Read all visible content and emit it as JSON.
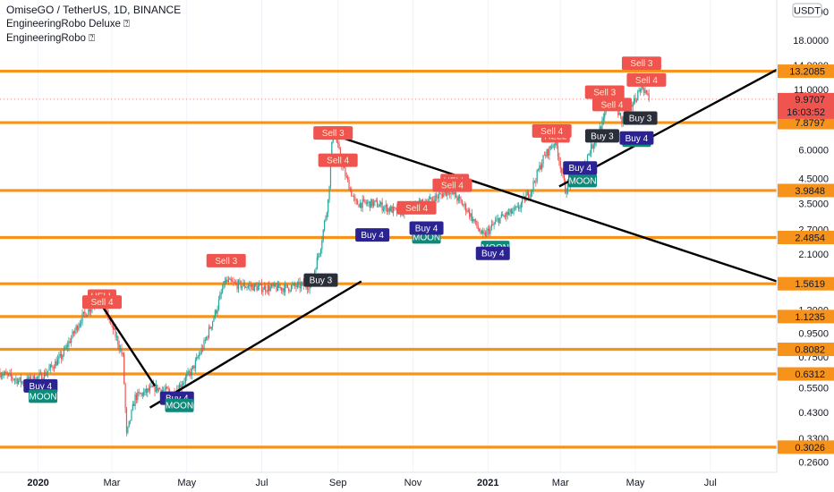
{
  "header": {
    "symbol_line": "OmiseGO / TetherUS, 1D, BINANCE",
    "indicator1": "EngineeringRobo Deluxe ⍰",
    "indicator2": "EngineeringRobo ⍰"
  },
  "price_axis": {
    "currency": "USDT",
    "ticks": [
      "24.0000",
      "18.0000",
      "14.0000",
      "11.0000",
      "8.0000",
      "6.0000",
      "4.5000",
      "3.5000",
      "2.7000",
      "2.1000",
      "1.6000",
      "1.2000",
      "0.9500",
      "0.7500",
      "0.5500",
      "0.4300",
      "0.3300",
      "0.2600"
    ],
    "last_price": "9.9707",
    "countdown": "16:03:52"
  },
  "time_axis": {
    "labels": [
      "2020",
      "Mar",
      "May",
      "Jul",
      "Sep",
      "Nov",
      "2021",
      "Mar",
      "May",
      "Jul"
    ]
  },
  "colors": {
    "level": "#f7931a",
    "sell": "#f0544f",
    "buy": "#2b2391",
    "moon": "#0e8a7a",
    "hell": "#f0544f",
    "trend": "#000000",
    "last_price": "#f0544f",
    "candle_up": "#26a69a",
    "candle_down": "#ef5350"
  },
  "chart_data": {
    "type": "candlestick",
    "title": "OmiseGO / TetherUS, 1D, BINANCE",
    "y_scale": "log",
    "ylim": [
      0.235,
      27
    ],
    "x_range": [
      "2019-12-01",
      "2021-08-24"
    ],
    "horizontal_levels": [
      13.2085,
      7.8797,
      3.9848,
      2.4854,
      1.5619,
      1.1235,
      0.8082,
      0.6312,
      0.3026
    ],
    "close_path": [
      [
        "2019-12-01",
        0.64
      ],
      [
        "2019-12-20",
        0.58
      ],
      [
        "2020-01-05",
        0.62
      ],
      [
        "2020-01-20",
        0.75
      ],
      [
        "2020-02-05",
        1.1
      ],
      [
        "2020-02-18",
        1.33
      ],
      [
        "2020-02-25",
        1.2
      ],
      [
        "2020-03-05",
        0.9
      ],
      [
        "2020-03-10",
        0.75
      ],
      [
        "2020-03-13",
        0.34
      ],
      [
        "2020-03-20",
        0.5
      ],
      [
        "2020-04-05",
        0.55
      ],
      [
        "2020-04-20",
        0.52
      ],
      [
        "2020-05-05",
        0.65
      ],
      [
        "2020-05-15",
        0.85
      ],
      [
        "2020-05-25",
        1.2
      ],
      [
        "2020-06-01",
        1.6
      ],
      [
        "2020-06-10",
        1.55
      ],
      [
        "2020-07-01",
        1.5
      ],
      [
        "2020-07-20",
        1.5
      ],
      [
        "2020-08-10",
        1.55
      ],
      [
        "2020-08-18",
        2.3
      ],
      [
        "2020-08-24",
        3.6
      ],
      [
        "2020-08-28",
        7.5
      ],
      [
        "2020-09-05",
        5.0
      ],
      [
        "2020-09-15",
        3.5
      ],
      [
        "2020-10-01",
        3.5
      ],
      [
        "2020-10-20",
        3.2
      ],
      [
        "2020-11-15",
        3.6
      ],
      [
        "2020-12-01",
        4.0
      ],
      [
        "2020-12-15",
        3.3
      ],
      [
        "2020-12-28",
        2.5
      ],
      [
        "2021-01-10",
        3.0
      ],
      [
        "2021-01-25",
        3.3
      ],
      [
        "2021-02-05",
        4.0
      ],
      [
        "2021-02-15",
        5.5
      ],
      [
        "2021-02-25",
        6.6
      ],
      [
        "2021-03-05",
        4.0
      ],
      [
        "2021-03-20",
        5.2
      ],
      [
        "2021-04-05",
        8.0
      ],
      [
        "2021-04-10",
        10.5
      ],
      [
        "2021-04-20",
        8.0
      ],
      [
        "2021-05-01",
        10.0
      ],
      [
        "2021-05-06",
        11.6
      ],
      [
        "2021-05-12",
        9.97
      ]
    ],
    "trendlines": [
      [
        [
          "2020-02-20",
          1.3
        ],
        [
          "2020-04-05",
          0.56
        ]
      ],
      [
        [
          "2020-04-01",
          0.45
        ],
        [
          "2020-09-20",
          1.6
        ]
      ],
      [
        [
          "2020-08-27",
          7.0
        ],
        [
          "2021-08-24",
          1.6
        ]
      ],
      [
        [
          "2021-02-28",
          4.15
        ],
        [
          "2021-08-24",
          13.4
        ]
      ]
    ],
    "signals": [
      {
        "label": "Buy 4",
        "date": "2020-01-03",
        "value": 0.56,
        "kind": "buy"
      },
      {
        "label": "MOON",
        "date": "2020-01-05",
        "value": 0.505,
        "kind": "moon"
      },
      {
        "label": "HELL",
        "date": "2020-02-22",
        "value": 1.38,
        "kind": "hell"
      },
      {
        "label": "Sell 4",
        "date": "2020-02-22",
        "value": 1.3,
        "kind": "sell"
      },
      {
        "label": "Buy 4",
        "date": "2020-04-23",
        "value": 0.495,
        "kind": "buy"
      },
      {
        "label": "MOON",
        "date": "2020-04-25",
        "value": 0.46,
        "kind": "moon"
      },
      {
        "label": "Sell 3",
        "date": "2020-06-02",
        "value": 1.97,
        "kind": "sell"
      },
      {
        "label": "Buy 3",
        "date": "2020-08-18",
        "value": 1.62,
        "kind": "dark"
      },
      {
        "label": "HELL",
        "date": "2020-08-30",
        "value": 7.1,
        "kind": "hell"
      },
      {
        "label": "Sell 3",
        "date": "2020-08-28",
        "value": 7.1,
        "kind": "sell"
      },
      {
        "label": "Sell 4",
        "date": "2020-09-01",
        "value": 5.4,
        "kind": "sell"
      },
      {
        "label": "Buy 4",
        "date": "2020-09-29",
        "value": 2.55,
        "kind": "buy"
      },
      {
        "label": "Sell 4",
        "date": "2020-11-04",
        "value": 3.35,
        "kind": "sell"
      },
      {
        "label": "MOON",
        "date": "2020-11-12",
        "value": 2.5,
        "kind": "moon"
      },
      {
        "label": "Buy 4",
        "date": "2020-11-12",
        "value": 2.73,
        "kind": "buy"
      },
      {
        "label": "HELL",
        "date": "2020-12-05",
        "value": 4.4,
        "kind": "hell"
      },
      {
        "label": "Sell 4",
        "date": "2020-12-03",
        "value": 4.2,
        "kind": "sell"
      },
      {
        "label": "MOON",
        "date": "2021-01-07",
        "value": 2.25,
        "kind": "moon"
      },
      {
        "label": "Buy 4",
        "date": "2021-01-05",
        "value": 2.12,
        "kind": "buy"
      },
      {
        "label": "HELL",
        "date": "2021-02-25",
        "value": 6.9,
        "kind": "hell"
      },
      {
        "label": "Sell 4",
        "date": "2021-02-22",
        "value": 7.25,
        "kind": "sell"
      },
      {
        "label": "MOON",
        "date": "2021-03-19",
        "value": 4.4,
        "kind": "moon"
      },
      {
        "label": "Buy 4",
        "date": "2021-03-17",
        "value": 5.0,
        "kind": "buy"
      },
      {
        "label": "Buy 3",
        "date": "2021-04-04",
        "value": 6.9,
        "kind": "dark"
      },
      {
        "label": "Sell 3",
        "date": "2021-04-06",
        "value": 10.7,
        "kind": "sell"
      },
      {
        "label": "Sell 4",
        "date": "2021-04-12",
        "value": 9.45,
        "kind": "sell"
      },
      {
        "label": "MOON",
        "date": "2021-05-02",
        "value": 6.6,
        "kind": "moon"
      },
      {
        "label": "Buy 4",
        "date": "2021-05-02",
        "value": 6.75,
        "kind": "buy"
      },
      {
        "label": "Buy 3",
        "date": "2021-05-05",
        "value": 8.25,
        "kind": "dark"
      },
      {
        "label": "Sell 3",
        "date": "2021-05-06",
        "value": 14.3,
        "kind": "sell"
      },
      {
        "label": "Sell 4",
        "date": "2021-05-10",
        "value": 12.1,
        "kind": "sell"
      }
    ]
  }
}
